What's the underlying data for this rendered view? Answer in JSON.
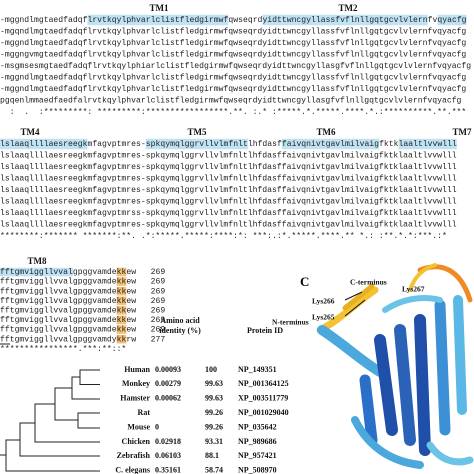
{
  "alignment": {
    "blocks": [
      {
        "tm_labels": [
          "TM1",
          "TM2"
        ],
        "rows": [
          [
            {
              "text": "-mggndlmgtaedfadqf"
            },
            {
              "text": "lrvtkqylphvarlclistfledgirmwf",
              "color": "#bfe3f5"
            },
            {
              "text": "qwseqrd"
            },
            {
              "text": "yidttwncgyllassfvflnllgqtgcvlvlern",
              "color": "#bfe3f5"
            },
            {
              "text": "fv"
            },
            {
              "text": "qyacfg",
              "color": "#bfe3f5"
            }
          ],
          [
            {
              "text": "-mgqndlmgtaedfadqflrvtkqylphvarlclistfledgirmwfqwseqrdyidttwncgyllassfvflnllgqtgcvlvlernfvqyacfg"
            }
          ],
          [
            {
              "text": "-mggndlmgtaedfadqflrvtkqylphvarlclistfledgirmwfqwseqrdyidttwncgyllassfvflnllgqtgcvlvlernfvqyacfg"
            }
          ],
          [
            {
              "text": "-mggngvmgtaedfadqflrvtkqylphvarlclistfledgirmwfqwseqrdyidttwncgyllassfvflnllgqtgcvlvlernfvqyacfg"
            }
          ],
          [
            {
              "text": "-msgmsesmgtaedfadqflrvtkqylphiarlclistfledgirmwfqwseqrdyidttwncgyllasgfvflnllgqtgcvlvlernfvqyacfg"
            }
          ],
          [
            {
              "text": "-mggndlmgtaedfadqflrvtkqylphvarlclistfledgirmwfqwseqrdyidttwncgyllassfvflnllgqtgcvlvlernfvqyacfg"
            }
          ],
          [
            {
              "text": "-mggndlmgtaedfadqflrvtkqylphvarlclistfledgirmwfqwseqrdyidttwncgyllassfvflnllgqtgcvlvlernfvqyacfg"
            }
          ],
          [
            {
              "text": "pgqenlmmaedfaedfalrvtkqylphvarlclistfledgirmwfqwseqrdyidttwncgyllasgfvflnllgqtgcvlvlernfvqyacfg"
            }
          ]
        ],
        "consensus": "  :  .  :*********: *********:*****************.**. :.* :*****.*.*****.****.*.:**********.**.***"
      },
      {
        "tm_labels": [
          "TM4",
          "TM5",
          "TM6",
          "TM7"
        ],
        "rows": [
          [
            {
              "text": "lslaaqllllaesreegk",
              "color": "#bfe3f5"
            },
            {
              "text": "mfagvptmres-"
            },
            {
              "text": "spkqymqlggrvllvlmfnlt",
              "color": "#bfe3f5"
            },
            {
              "text": "lhfdasf"
            },
            {
              "text": "faivqnivtgavlmilvaig",
              "color": "#bfe3f5"
            },
            {
              "text": "fktk"
            },
            {
              "text": "laaltlvvwlll",
              "color": "#bfe3f5"
            }
          ],
          [
            {
              "text": "lslaaqllllaesreegkmfagvptmres-spkqymqlggrvllvlmfnltlhfdasffaivqnivtgavlmilvaigfktklaaltlvvwlll"
            }
          ],
          [
            {
              "text": "lslaaqllllaesreegkmfagvptmres-spkqymqlggrvllvlmfnltlhfdasffaivqnivtgavlmilvaigfktklaaltlvvwlll"
            }
          ],
          [
            {
              "text": "lslaaqllllaesreegkmfagvptmres-spkqymqlggrvllvlmfnltlhfdasffaivqnivtgavlmilvaigfktklaaltlvvwlll"
            }
          ],
          [
            {
              "text": "lslaaqllllaesreegkmfagvptmres-spkqymqlggrvllvlmfnltlhfdasffaivqnivtgavlmilvaigfktklaaltlvvwlll"
            }
          ],
          [
            {
              "text": "lslaaqllllaesreegkmfagvptmres-spkqymqlggrvllvlmfnltlhfdasffaivqnivtgavlmilvaigfktklaaltlvvwlll"
            }
          ],
          [
            {
              "text": "lslaaqllllaesreegkmfagvptmrss-spkqymqlggrvllvlmfnltlhfdasffaivqnivtgavlmilvaigfktklaaltlvvwlll"
            }
          ],
          [
            {
              "text": "lslaaqllllaesreegkmfagvptmres-spkqymqlggrvllvlmfnltlhfdasffaivqnivtgavlmilvaigfktklaaltlvvwlll"
            }
          ]
        ],
        "consensus": "********:******* *******:**. .*:*****.*****:****:*: ***:.:*.*****.****.** *.: :**.*.*:***.:*"
      },
      {
        "tm_labels": [
          "TM8"
        ],
        "rows": [
          [
            {
              "text": "fftgmviggllvval",
              "color": "#bfe3f5"
            },
            {
              "text": "gpggvamde"
            },
            {
              "text": "kk",
              "color": "#f5c27a"
            },
            {
              "text": "ew"
            }
          ],
          [
            {
              "text": "fftgmviggllvvalgpggvamde"
            },
            {
              "text": "kk",
              "color": "#f5c27a"
            },
            {
              "text": "ew"
            }
          ],
          [
            {
              "text": "fftgmviggllvvalgpggvamde"
            },
            {
              "text": "kk",
              "color": "#f5c27a"
            },
            {
              "text": "ew"
            }
          ],
          [
            {
              "text": "fftgmviggllvvalgpggvamde"
            },
            {
              "text": "kk",
              "color": "#f5c27a"
            },
            {
              "text": "ew"
            }
          ],
          [
            {
              "text": "fftgmviggllvvalgpggvamde"
            },
            {
              "text": "kk",
              "color": "#f5c27a"
            },
            {
              "text": "ew"
            }
          ],
          [
            {
              "text": "fftgmviggllvvalgpggvamde"
            },
            {
              "text": "kk",
              "color": "#f5c27a"
            },
            {
              "text": "ew"
            }
          ],
          [
            {
              "text": "fftgmviggllvvalgpggvamde"
            },
            {
              "text": "kk",
              "color": "#f5c27a"
            },
            {
              "text": "ew"
            }
          ],
          [
            {
              "text": "fftgmviggllvvalgpggvamdy"
            },
            {
              "text": "kk",
              "color": "#f5c27a"
            },
            {
              "text": "rw"
            }
          ]
        ],
        "lengths": [
          "269",
          "269",
          "269",
          "269",
          "269",
          "269",
          "269",
          "277"
        ],
        "consensus": "****************.***:**::*"
      }
    ]
  },
  "table": {
    "identity_header": [
      "Amino acid",
      "identity (%)"
    ],
    "protein_id_header": "Protein ID",
    "rows": [
      [
        "Human",
        "0.00093",
        "100",
        "NP_149351"
      ],
      [
        "Monkey",
        "0.00279",
        "99.63",
        "NP_001364125"
      ],
      [
        "Hamster",
        "0.00062",
        "99.63",
        "XP_003511779"
      ],
      [
        "Rat",
        null,
        "99.26",
        "NP_001029040"
      ],
      [
        "Mouse",
        "0",
        "99.26",
        "NP_035642"
      ],
      [
        "Chicken",
        "0.02918",
        "93.31",
        "NP_989686"
      ],
      [
        "Zebrafish",
        "0.06103",
        "88.1",
        "NP_957421"
      ],
      [
        "C. elegans",
        "0.35161",
        "58.74",
        "NP_508970"
      ]
    ]
  },
  "structure": {
    "panel_label": "C",
    "c_terminus": "C-terminus",
    "lys267": "Lys267",
    "lys266": "Lys266",
    "n_terminus": "N-terminus",
    "lys265": "Lys265"
  }
}
